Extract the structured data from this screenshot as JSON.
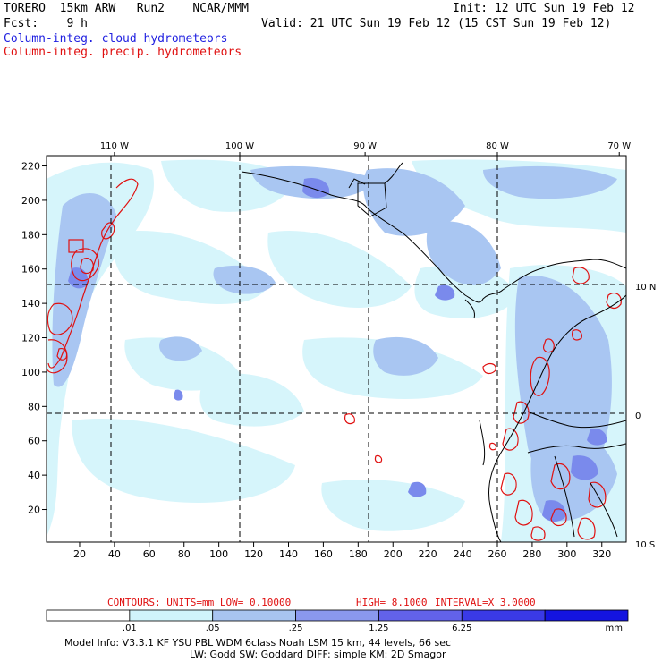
{
  "header": {
    "model_line": "TORERO  15km ARW   Run2    NCAR/MMM",
    "init_line": "Init: 12 UTC Sun 19 Feb 12",
    "fcst_line": "Fcst:    9 h",
    "valid_line": "Valid: 21 UTC Sun 19 Feb 12 (15 CST Sun 19 Feb 12)",
    "field1": "Column-integ. cloud hydrometeors",
    "field2": "Column-integ. precip. hydrometeors"
  },
  "map": {
    "lon_labels": [
      {
        "text": "110 W",
        "x": 40
      },
      {
        "text": "100 W",
        "x": 112
      },
      {
        "text": "90 W",
        "x": 184
      },
      {
        "text": "80 W",
        "x": 260
      },
      {
        "text": "70 W",
        "x": 330
      }
    ],
    "lat_labels": [
      {
        "text": "10 N",
        "y": 150
      },
      {
        "text": "0",
        "y": 75
      },
      {
        "text": "10 S",
        "y": 0
      }
    ],
    "x_ticks": [
      20,
      40,
      60,
      80,
      100,
      120,
      140,
      160,
      180,
      200,
      220,
      240,
      260,
      280,
      300,
      320
    ],
    "y_ticks": [
      20,
      40,
      60,
      80,
      100,
      120,
      140,
      160,
      180,
      200,
      220
    ],
    "grid_x": [
      40,
      112,
      184,
      260
    ],
    "grid_y": [
      150,
      75
    ],
    "grid_x_range": [
      1,
      334
    ],
    "grid_y_range": [
      1,
      226
    ]
  },
  "contours_line": {
    "c1": "CONTOURS:  UNITS=mm  LOW= 0.10000",
    "c2": "HIGH=  8.1000",
    "c3": "INTERVAL=X  3.0000"
  },
  "colorbar": {
    "labels": [
      ".01",
      ".05",
      ".25",
      "1.25",
      "6.25"
    ],
    "unit": "mm",
    "colors": [
      "#ffffff",
      "#d0f4fb",
      "#a8c4f0",
      "#8a98ee",
      "#6262ea",
      "#3a3ae6",
      "#1414e0"
    ]
  },
  "footer": {
    "line1": "Model Info: V3.3.1    KF     YSU PBL   WDM 6class  Noah LSM  15 km,   44 levels,   66 sec",
    "line2": "LW: Godd SW: Goddard DIFF: simple KM: 2D Smagor"
  },
  "colors": {
    "cloud_light": "#d6f5fb",
    "cloud_mid": "#a9c6f2",
    "cloud_dark": "#7a8aec",
    "precip": "#e01010",
    "coast": "#000000"
  }
}
